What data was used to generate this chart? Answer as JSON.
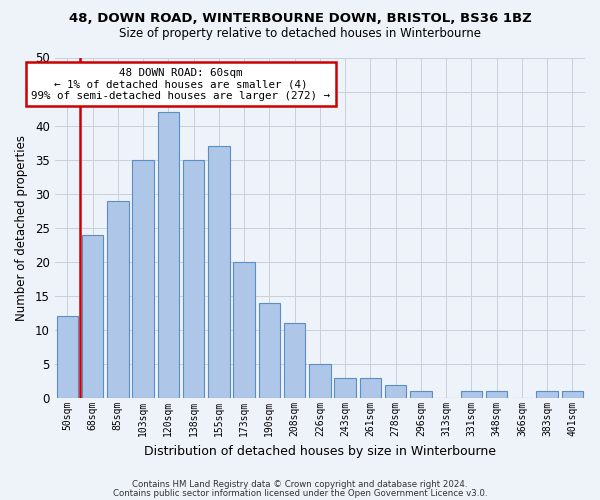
{
  "title_line1": "48, DOWN ROAD, WINTERBOURNE DOWN, BRISTOL, BS36 1BZ",
  "title_line2": "Size of property relative to detached houses in Winterbourne",
  "xlabel": "Distribution of detached houses by size in Winterbourne",
  "ylabel": "Number of detached properties",
  "bar_labels": [
    "50sqm",
    "68sqm",
    "85sqm",
    "103sqm",
    "120sqm",
    "138sqm",
    "155sqm",
    "173sqm",
    "190sqm",
    "208sqm",
    "226sqm",
    "243sqm",
    "261sqm",
    "278sqm",
    "296sqm",
    "313sqm",
    "331sqm",
    "348sqm",
    "366sqm",
    "383sqm",
    "401sqm"
  ],
  "bar_values": [
    12,
    24,
    29,
    35,
    42,
    35,
    37,
    20,
    14,
    11,
    5,
    3,
    3,
    2,
    1,
    0,
    1,
    1,
    0,
    1,
    1
  ],
  "bar_color": "#aec6e8",
  "bar_edge_color": "#5a8fc2",
  "highlight_color": "#cc0000",
  "annotation_title": "48 DOWN ROAD: 60sqm",
  "annotation_line1": "← 1% of detached houses are smaller (4)",
  "annotation_line2": "99% of semi-detached houses are larger (272) →",
  "annotation_box_color": "#ffffff",
  "annotation_box_edge": "#cc0000",
  "ylim": [
    0,
    50
  ],
  "yticks": [
    0,
    5,
    10,
    15,
    20,
    25,
    30,
    35,
    40,
    45,
    50
  ],
  "footer_line1": "Contains HM Land Registry data © Crown copyright and database right 2024.",
  "footer_line2": "Contains public sector information licensed under the Open Government Licence v3.0.",
  "background_color": "#eef2f9",
  "grid_color": "#c8d0de"
}
